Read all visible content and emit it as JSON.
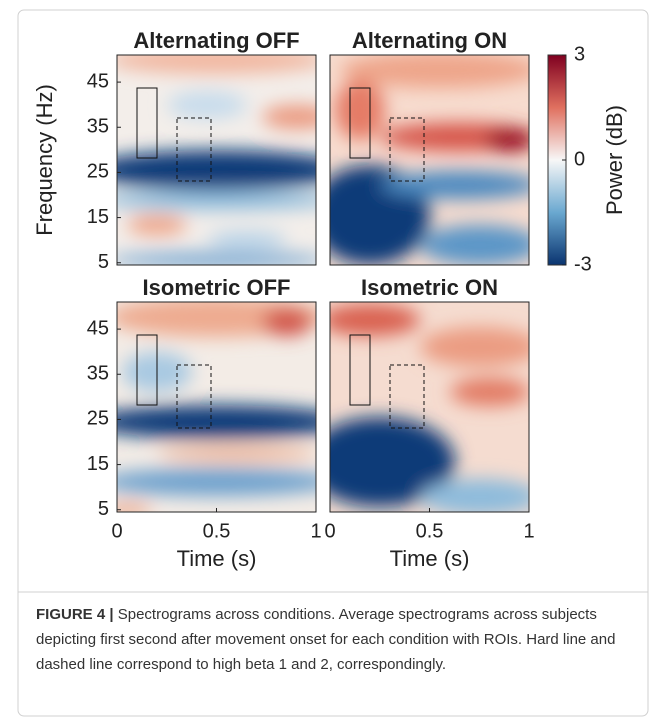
{
  "chart_data": [
    {
      "type": "heatmap",
      "title": "Alternating OFF",
      "ylabel": "Frequency (Hz)",
      "ylim": [
        4.5,
        51
      ],
      "yticks": [
        5,
        15,
        25,
        35,
        45
      ]
    },
    {
      "type": "heatmap",
      "title": "Alternating ON",
      "colorbar": {
        "label": "Power (dB)",
        "lim": [
          -3,
          3
        ],
        "ticks": [
          -3,
          0,
          3
        ]
      }
    },
    {
      "type": "heatmap",
      "title": "Isometric OFF",
      "xlabel": "Time (s)",
      "xlim": [
        0,
        1
      ],
      "xticks": [
        0,
        0.5,
        1
      ],
      "ylim": [
        4.5,
        51
      ],
      "yticks": [
        5,
        15,
        25,
        35,
        45
      ]
    },
    {
      "type": "heatmap",
      "title": "Isometric ON",
      "xlabel": "Time (s)",
      "xlim": [
        0,
        1
      ],
      "xticks": [
        0,
        0.5,
        1
      ]
    }
  ],
  "caption": {
    "label": "FIGURE 4 |",
    "text": "Spectrograms across conditions. Average spectrograms across subjects depicting first second after movement onset for each condition with ROIs. Hard line and dashed line correspond to high beta 1 and 2, correspondingly."
  }
}
